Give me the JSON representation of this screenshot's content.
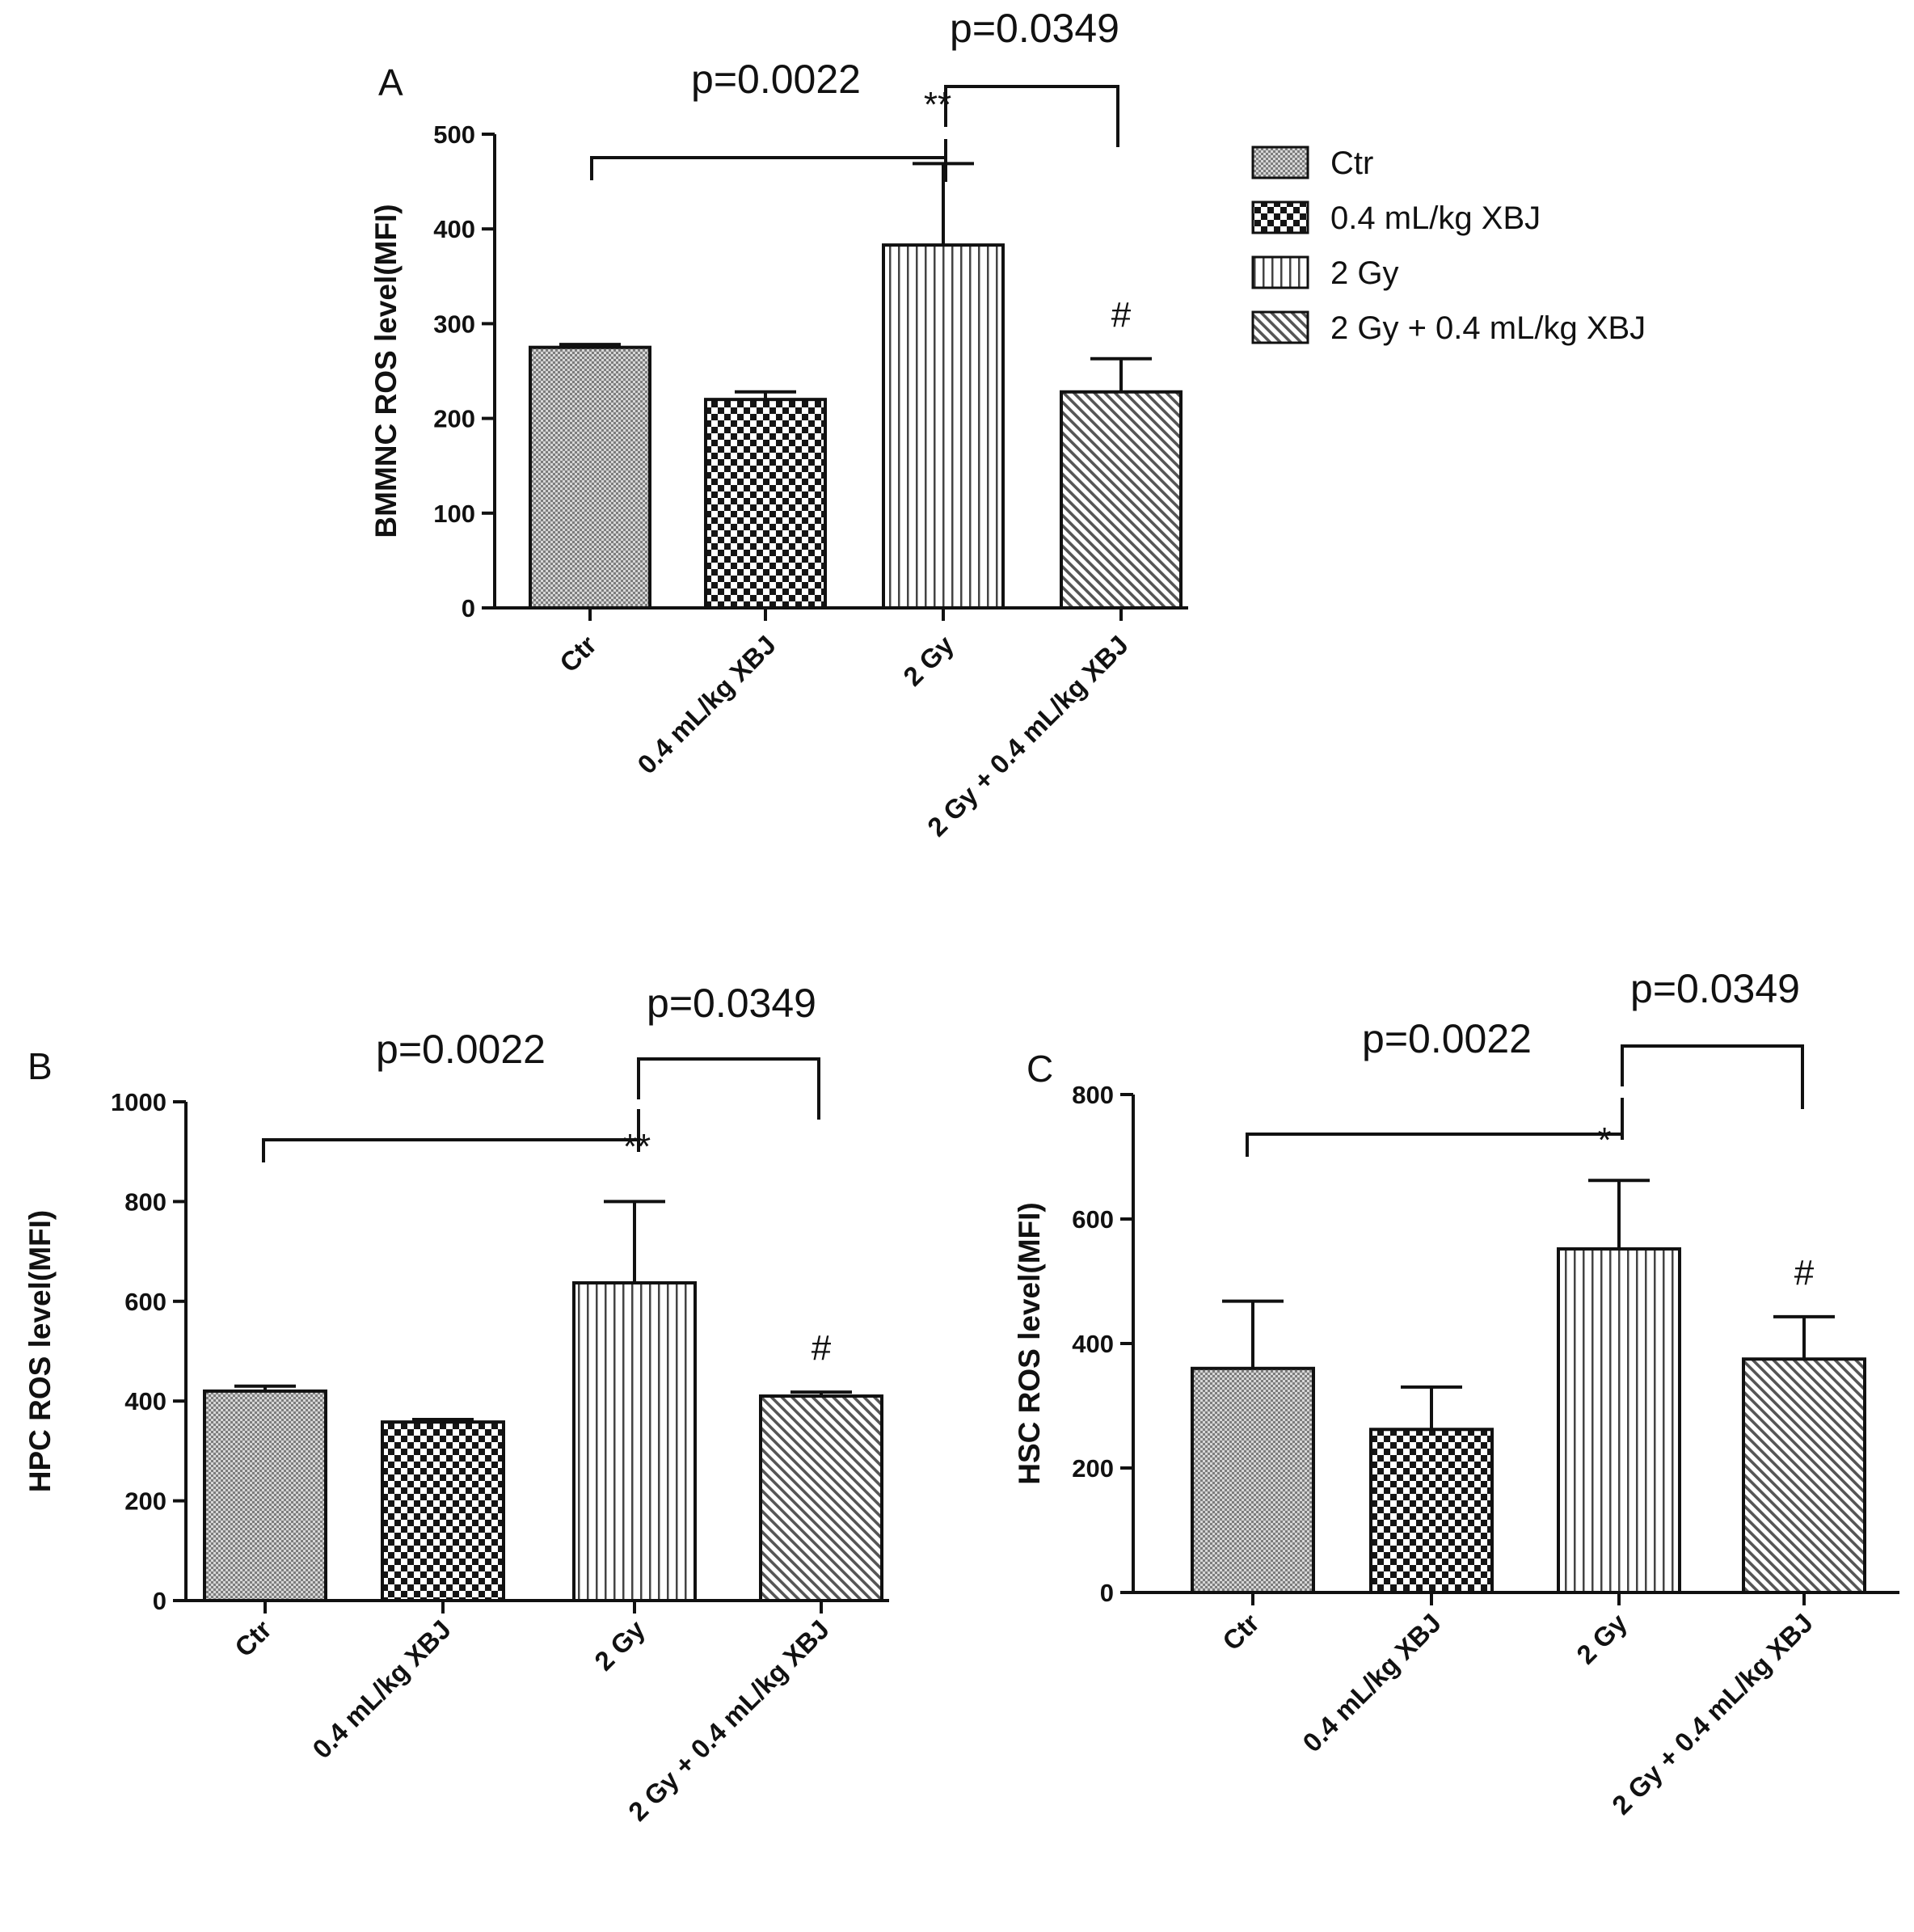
{
  "legend": {
    "items": [
      {
        "label": "Ctr",
        "pattern": "dense"
      },
      {
        "label": "0.4 mL/kg XBJ",
        "pattern": "checker"
      },
      {
        "label": "2 Gy",
        "pattern": "vertical"
      },
      {
        "label": "2 Gy + 0.4 mL/kg XBJ",
        "pattern": "diagonal"
      }
    ]
  },
  "chart_data": [
    {
      "type": "bar",
      "panel": "A",
      "ylabel": "BMMNC ROS level(MFI)",
      "ylim": [
        0,
        500
      ],
      "yticks": [
        "0",
        "100",
        "200",
        "300",
        "400",
        "500"
      ],
      "categories": [
        "Ctr",
        "0.4 mL/kg XBJ",
        "2 Gy",
        "2 Gy + 0.4 mL/kg XBJ"
      ],
      "values": [
        275,
        220,
        383,
        228
      ],
      "errors": [
        3,
        8,
        86,
        35
      ],
      "annotations": {
        "p1": "p=0.0022",
        "p2": "p=0.0349",
        "star": "**",
        "hash": "#"
      }
    },
    {
      "type": "bar",
      "panel": "B",
      "ylabel": "HPC ROS level(MFI)",
      "ylim": [
        0,
        1000
      ],
      "yticks": [
        "0",
        "200",
        "400",
        "600",
        "800",
        "1000"
      ],
      "categories": [
        "Ctr",
        "0.4 mL/kg XBJ",
        "2 Gy",
        "2 Gy + 0.4 mL/kg XBJ"
      ],
      "values": [
        420,
        358,
        637,
        410
      ],
      "errors": [
        10,
        5,
        163,
        8
      ],
      "annotations": {
        "p1": "p=0.0022",
        "p2": "p=0.0349",
        "star": "**",
        "hash": "#"
      }
    },
    {
      "type": "bar",
      "panel": "C",
      "ylabel": "HSC ROS level(MFI)",
      "ylim": [
        0,
        800
      ],
      "yticks": [
        "0",
        "200",
        "400",
        "600",
        "800"
      ],
      "categories": [
        "Ctr",
        "0.4 mL/kg XBJ",
        "2 Gy",
        "2 Gy + 0.4 mL/kg XBJ"
      ],
      "values": [
        360,
        262,
        552,
        375
      ],
      "errors": [
        108,
        68,
        110,
        68
      ],
      "annotations": {
        "p1": "p=0.0022",
        "p2": "p=0.0349",
        "star": "*",
        "hash": "#"
      }
    }
  ]
}
